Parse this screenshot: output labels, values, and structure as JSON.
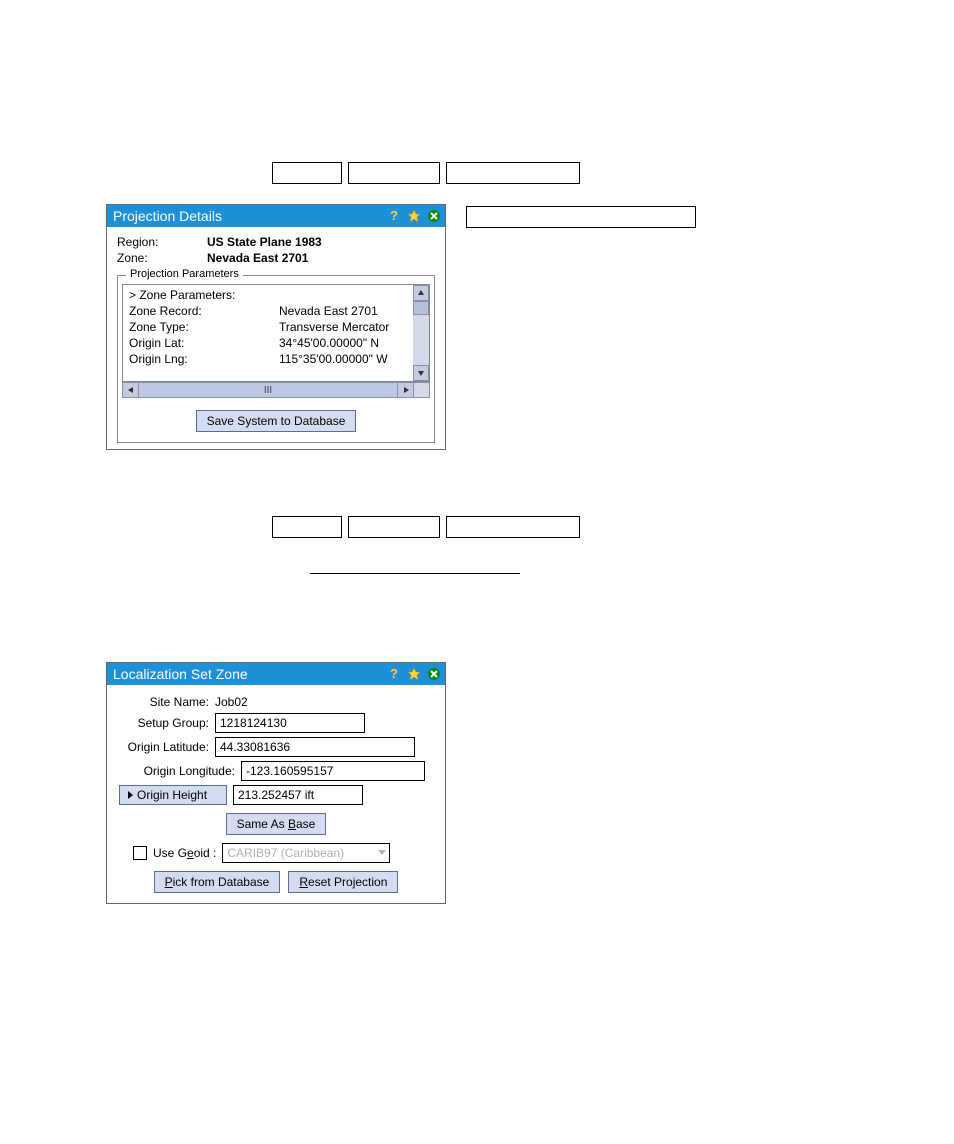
{
  "window1": {
    "title": "Projection Details",
    "region_label": "Region:",
    "region_value": "US State Plane 1983",
    "zone_label": "Zone:",
    "zone_value": "Nevada East 2701",
    "fieldset_label": "Projection Parameters",
    "params": [
      {
        "k": "> Zone Parameters:",
        "v": ""
      },
      {
        "k": "Zone Record:",
        "v": "Nevada East 2701"
      },
      {
        "k": "Zone Type:",
        "v": "Transverse Mercator"
      },
      {
        "k": "Origin Lat:",
        "v": "34°45'00.00000\" N"
      },
      {
        "k": "Origin Lng:",
        "v": "115°35'00.00000\" W"
      }
    ],
    "save_label": "Save System to Database"
  },
  "window2": {
    "title": "Localization Set Zone",
    "site_name_label": "Site Name:",
    "site_name_value": "Job02",
    "setup_group_label": "Setup Group:",
    "setup_group_value": "1218124130",
    "origin_lat_label": "Origin Latitude:",
    "origin_lat_value": "44.33081636",
    "origin_lng_label": "Origin Longitude:",
    "origin_lng_value": "-123.160595157",
    "origin_height_btn": "Origin Height",
    "origin_height_value": "213.252457 ift",
    "same_as_base": "Same As Base",
    "use_geoid_label": "Use Geoid :",
    "geoid_value": "CARIB97 (Caribbean)",
    "pick_db": "Pick from Database",
    "reset_proj": "Reset Projection"
  },
  "colors": {
    "titlebar_bg": "#1e90d8",
    "button_bg": "#d4dcf0",
    "button_border": "#5b6b9a",
    "scroll_bg": "#bcc8e4"
  }
}
